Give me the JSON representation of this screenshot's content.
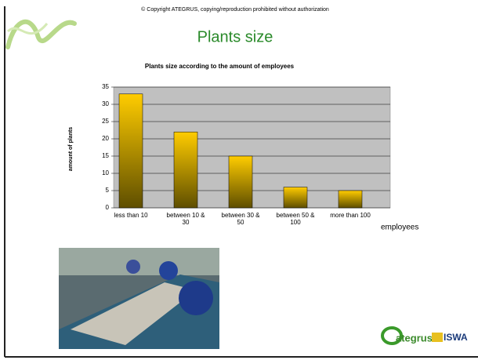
{
  "copyright": "© Copyright ATEGRUS, copying/reproduction prohibited without authorization",
  "slide_title": "Plants size",
  "logo": {
    "brand": "ategrus",
    "partner": "ISWA"
  },
  "chart_data": {
    "type": "bar",
    "title": "Plants size according to the amount of employees",
    "y_label": "amount of plants",
    "x_label": "employees",
    "categories": [
      "less than 10",
      "between 10 & 30",
      "between 30 & 50",
      "between 50 & 100",
      "more than 100"
    ],
    "values": [
      33,
      22,
      15,
      6,
      5
    ],
    "color": "#ffcc00",
    "ylim": [
      0,
      35
    ],
    "yticks": [
      0,
      5,
      10,
      15,
      20,
      25,
      30,
      35
    ],
    "grid": true
  }
}
